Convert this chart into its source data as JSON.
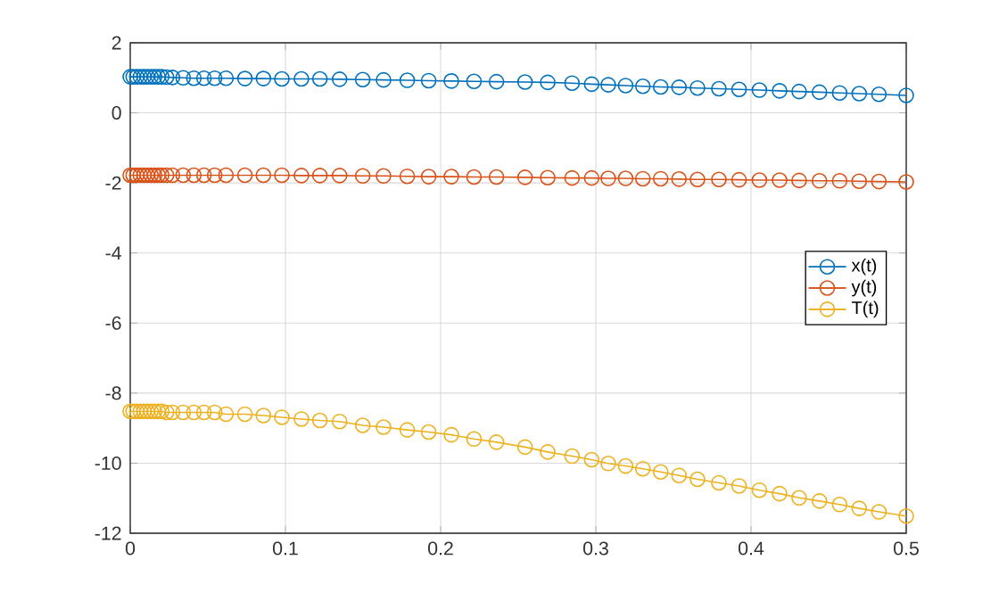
{
  "chart_data": {
    "type": "line",
    "x": [
      0,
      0.0019,
      0.0042,
      0.0065,
      0.0088,
      0.011,
      0.0134,
      0.0157,
      0.018,
      0.0203,
      0.0234,
      0.0272,
      0.0341,
      0.041,
      0.0475,
      0.0544,
      0.0617,
      0.0739,
      0.0858,
      0.0977,
      0.1103,
      0.1222,
      0.1349,
      0.1498,
      0.1632,
      0.1785,
      0.1923,
      0.2069,
      0.2215,
      0.236,
      0.2544,
      0.269,
      0.2847,
      0.2973,
      0.308,
      0.3192,
      0.3303,
      0.3418,
      0.3536,
      0.3655,
      0.3793,
      0.3923,
      0.4054,
      0.4184,
      0.431,
      0.4441,
      0.4571,
      0.4697,
      0.4824,
      0.5
    ],
    "series": [
      {
        "name": "x(t)",
        "color": "#0072bd",
        "values": [
          1.03,
          1.03,
          1.03,
          1.03,
          1.03,
          1.03,
          1.03,
          1.03,
          1.03,
          1.03,
          1.02,
          1.01,
          1.0,
          0.99,
          0.99,
          0.99,
          0.99,
          0.98,
          0.98,
          0.97,
          0.97,
          0.97,
          0.96,
          0.95,
          0.94,
          0.93,
          0.92,
          0.91,
          0.9,
          0.89,
          0.88,
          0.87,
          0.85,
          0.82,
          0.8,
          0.78,
          0.76,
          0.74,
          0.73,
          0.71,
          0.69,
          0.67,
          0.65,
          0.63,
          0.61,
          0.59,
          0.57,
          0.55,
          0.53,
          0.5
        ]
      },
      {
        "name": "y(t)",
        "color": "#d95319",
        "values": [
          -1.78,
          -1.78,
          -1.78,
          -1.78,
          -1.78,
          -1.78,
          -1.78,
          -1.78,
          -1.78,
          -1.78,
          -1.78,
          -1.78,
          -1.78,
          -1.78,
          -1.78,
          -1.78,
          -1.78,
          -1.78,
          -1.78,
          -1.78,
          -1.79,
          -1.79,
          -1.79,
          -1.8,
          -1.8,
          -1.81,
          -1.82,
          -1.82,
          -1.83,
          -1.83,
          -1.84,
          -1.85,
          -1.86,
          -1.86,
          -1.87,
          -1.87,
          -1.88,
          -1.88,
          -1.89,
          -1.9,
          -1.9,
          -1.91,
          -1.92,
          -1.92,
          -1.93,
          -1.94,
          -1.94,
          -1.95,
          -1.96,
          -1.97
        ]
      },
      {
        "name": "T(t)",
        "color": "#edb120",
        "values": [
          -8.52,
          -8.52,
          -8.52,
          -8.52,
          -8.52,
          -8.52,
          -8.52,
          -8.52,
          -8.52,
          -8.52,
          -8.55,
          -8.55,
          -8.55,
          -8.55,
          -8.55,
          -8.55,
          -8.6,
          -8.6,
          -8.64,
          -8.69,
          -8.74,
          -8.78,
          -8.81,
          -8.92,
          -8.97,
          -9.05,
          -9.11,
          -9.19,
          -9.31,
          -9.4,
          -9.54,
          -9.68,
          -9.8,
          -9.9,
          -10.01,
          -10.08,
          -10.16,
          -10.25,
          -10.35,
          -10.46,
          -10.56,
          -10.65,
          -10.77,
          -10.87,
          -10.99,
          -11.08,
          -11.18,
          -11.29,
          -11.39,
          -11.51
        ]
      }
    ],
    "xlim": [
      0,
      0.5
    ],
    "ylim": [
      -12,
      2
    ],
    "xticks": [
      0,
      0.1,
      0.2,
      0.3,
      0.4,
      0.5
    ],
    "yticks": [
      -12,
      -10,
      -8,
      -6,
      -4,
      -2,
      0,
      2
    ],
    "grid": true,
    "legend": "right",
    "marker": "circle",
    "line_style": "solid"
  }
}
